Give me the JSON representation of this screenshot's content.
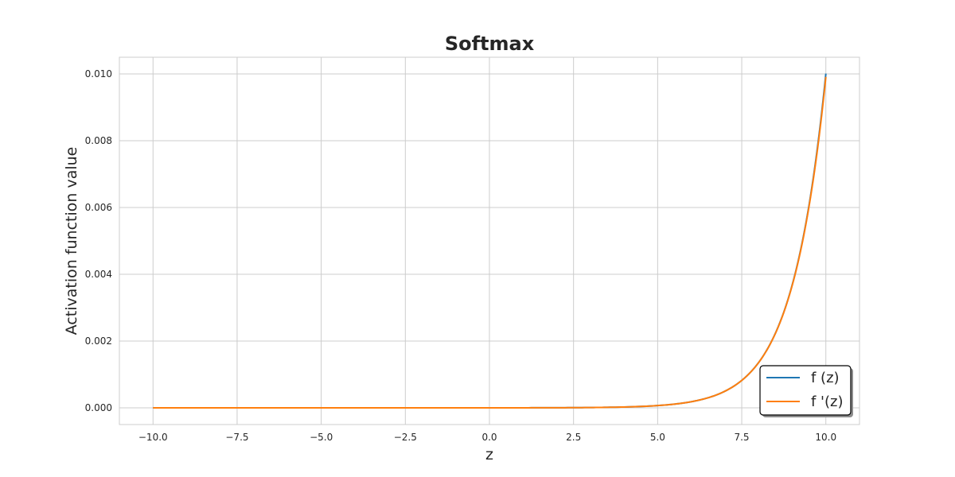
{
  "chart_data": {
    "type": "line",
    "title": "Softmax",
    "xlabel": "z",
    "ylabel": "Activation function value",
    "xlim": [
      -11.0,
      11.0
    ],
    "ylim": [
      -0.0005,
      0.0105
    ],
    "x_ticks": [
      -10.0,
      -7.5,
      -5.0,
      -2.5,
      0.0,
      2.5,
      5.0,
      7.5,
      10.0
    ],
    "x_tick_labels": [
      "−10.0",
      "−7.5",
      "−5.0",
      "−2.5",
      "0.0",
      "2.5",
      "5.0",
      "7.5",
      "10.0"
    ],
    "y_ticks": [
      0.0,
      0.002,
      0.004,
      0.006,
      0.008,
      0.01
    ],
    "y_tick_labels": [
      "0.000",
      "0.002",
      "0.004",
      "0.006",
      "0.008",
      "0.010"
    ],
    "grid": true,
    "legend_position": "lower-right",
    "series": [
      {
        "name": "f (z)",
        "color": "#1f77b4",
        "x": [
          -10,
          -8,
          -6,
          -4,
          -2,
          0,
          1,
          2,
          3,
          4,
          5,
          5.5,
          6,
          6.5,
          7,
          7.5,
          8,
          8.5,
          9,
          9.5,
          10
        ],
        "y": [
          0.0,
          0.0,
          0.0,
          0.0,
          1e-07,
          5e-07,
          1.2e-06,
          3.4e-06,
          9.1e-06,
          2.48e-05,
          6.74e-05,
          0.000111,
          0.000183,
          0.000302,
          0.000498,
          0.000822,
          0.001355,
          0.002234,
          0.003683,
          0.006072,
          0.010011
        ]
      },
      {
        "name": "f '(z)",
        "color": "#ff7f0e",
        "x": [
          -10,
          -8,
          -6,
          -4,
          -2,
          0,
          1,
          2,
          3,
          4,
          5,
          5.5,
          6,
          6.5,
          7,
          7.5,
          8,
          8.5,
          9,
          9.5,
          10
        ],
        "y": [
          0.0,
          0.0,
          0.0,
          0.0,
          1e-07,
          5e-07,
          1.2e-06,
          3.4e-06,
          9.1e-06,
          2.48e-05,
          6.74e-05,
          0.000111,
          0.000183,
          0.000302,
          0.000498,
          0.000821,
          0.001353,
          0.002229,
          0.003669,
          0.006035,
          0.009911
        ]
      }
    ]
  }
}
